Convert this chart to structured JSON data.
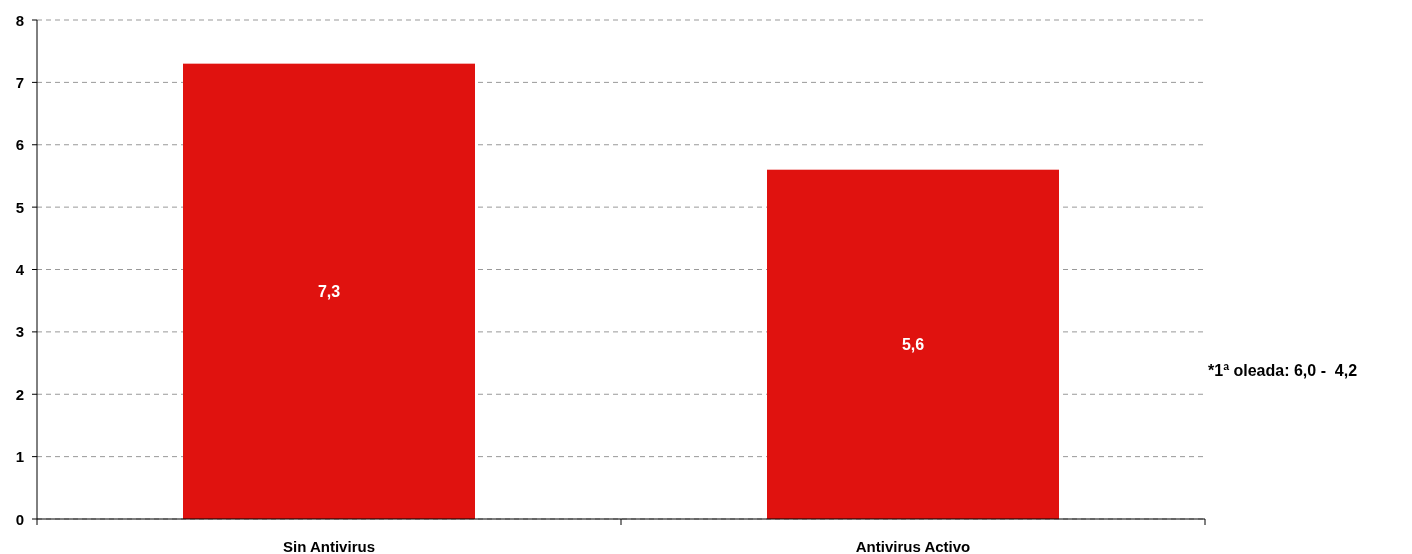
{
  "chart_data": {
    "type": "bar",
    "categories": [
      "Sin Antivirus",
      "Antivirus Activo"
    ],
    "values": [
      7.3,
      5.6
    ],
    "color": "#e0120f",
    "value_labels": [
      "7,3",
      "5,6"
    ],
    "ylim": [
      0,
      8
    ],
    "yticks": [
      0,
      1,
      2,
      3,
      4,
      5,
      6,
      7,
      8
    ],
    "grid": "y",
    "annotations": [
      "*1ª oleada: 6,0 -  4,2"
    ]
  }
}
